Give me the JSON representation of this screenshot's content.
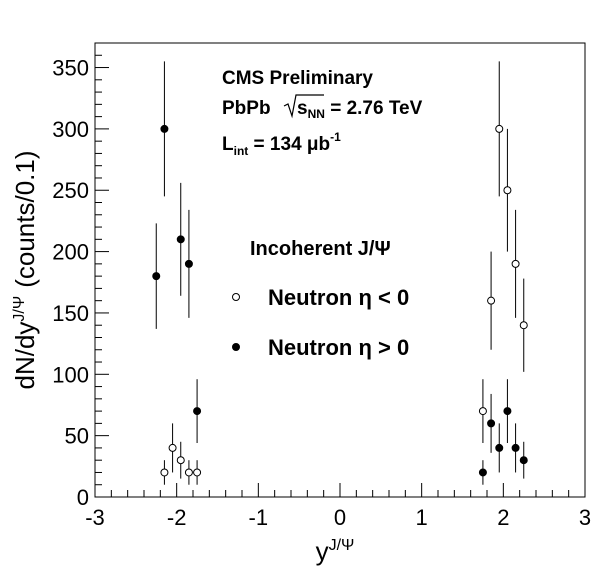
{
  "chart_data": {
    "type": "scatter",
    "xlabel": "y",
    "xlabel_sup": "J/Ψ",
    "ylabel_main": "dN/dy",
    "ylabel_sup": "J/Ψ",
    "ylabel_units": "(counts/0.1)",
    "xlim": [
      -3,
      3
    ],
    "ylim": [
      0,
      370
    ],
    "x_ticks": [
      -3,
      -2,
      -1,
      0,
      1,
      2,
      3
    ],
    "y_ticks": [
      0,
      50,
      100,
      150,
      200,
      250,
      300,
      350
    ],
    "grid": false,
    "annotations": {
      "line1": "CMS Preliminary",
      "line2_prefix": "PbPb ",
      "line2_sqrt": "s",
      "line2_sub": "NN",
      "line2_suffix": " = 2.76 TeV",
      "line3_main": "L",
      "line3_sub": "int",
      "line3_value": " = 134 μb",
      "line3_sup": "-1"
    },
    "legend": {
      "title": "Incoherent J/Ψ",
      "position": "center",
      "entries": [
        {
          "label": "Neutron η < 0",
          "marker": "open-circle"
        },
        {
          "label": "Neutron η > 0",
          "marker": "filled-circle"
        }
      ]
    },
    "series": [
      {
        "name": "Neutron η < 0",
        "marker": "open-circle",
        "points": [
          {
            "x": -2.15,
            "y": 20,
            "err": 10
          },
          {
            "x": -2.05,
            "y": 40,
            "err": 20
          },
          {
            "x": -1.95,
            "y": 30,
            "err": 15
          },
          {
            "x": -1.85,
            "y": 20,
            "err": 10
          },
          {
            "x": -1.75,
            "y": 20,
            "err": 10
          },
          {
            "x": 1.85,
            "y": 160,
            "err": 40
          },
          {
            "x": 1.95,
            "y": 300,
            "err": 55
          },
          {
            "x": 2.05,
            "y": 250,
            "err": 50
          },
          {
            "x": 2.15,
            "y": 190,
            "err": 44
          },
          {
            "x": 2.25,
            "y": 140,
            "err": 38
          },
          {
            "x": 1.75,
            "y": 70,
            "err": 26
          }
        ]
      },
      {
        "name": "Neutron η > 0",
        "marker": "filled-circle",
        "points": [
          {
            "x": -2.25,
            "y": 180,
            "err": 43
          },
          {
            "x": -2.15,
            "y": 300,
            "err": 55
          },
          {
            "x": -1.95,
            "y": 210,
            "err": 46
          },
          {
            "x": -1.85,
            "y": 190,
            "err": 44
          },
          {
            "x": -1.75,
            "y": 70,
            "err": 26
          },
          {
            "x": 1.75,
            "y": 20,
            "err": 10
          },
          {
            "x": 1.85,
            "y": 60,
            "err": 24
          },
          {
            "x": 1.95,
            "y": 40,
            "err": 20
          },
          {
            "x": 2.05,
            "y": 70,
            "err": 26
          },
          {
            "x": 2.15,
            "y": 40,
            "err": 20
          },
          {
            "x": 2.25,
            "y": 30,
            "err": 15
          }
        ]
      }
    ]
  }
}
